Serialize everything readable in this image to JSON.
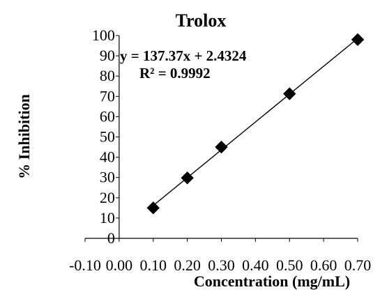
{
  "chart_data": {
    "type": "scatter",
    "title": "Trolox",
    "xlabel": "Concentration (mg/mL)",
    "ylabel": "% Inhibition",
    "x_ticks": [
      "-0.10",
      "0.00",
      "0.10",
      "0.20",
      "0.30",
      "0.40",
      "0.50",
      "0.60",
      "0.70"
    ],
    "y_ticks": [
      "0",
      "10",
      "20",
      "30",
      "40",
      "50",
      "60",
      "70",
      "80",
      "90",
      "100"
    ],
    "xlim": [
      -0.1,
      0.7
    ],
    "ylim": [
      0,
      100
    ],
    "grid": false,
    "legend": "none",
    "series": [
      {
        "x": [
          0.1,
          0.2,
          0.3,
          0.5,
          0.7
        ],
        "y": [
          15.0,
          29.8,
          45.0,
          71.3,
          98.0
        ]
      }
    ],
    "trendline": {
      "type": "linear",
      "slope": 137.37,
      "intercept": 2.4324,
      "x_range": [
        0.1,
        0.7
      ]
    },
    "annotations": [
      "y = 137.37x + 2.4324",
      "R² = 0.9992"
    ],
    "colors": {
      "marker": "#000000",
      "line": "#000000",
      "axis": "#000000",
      "background": "#ffffff"
    }
  }
}
